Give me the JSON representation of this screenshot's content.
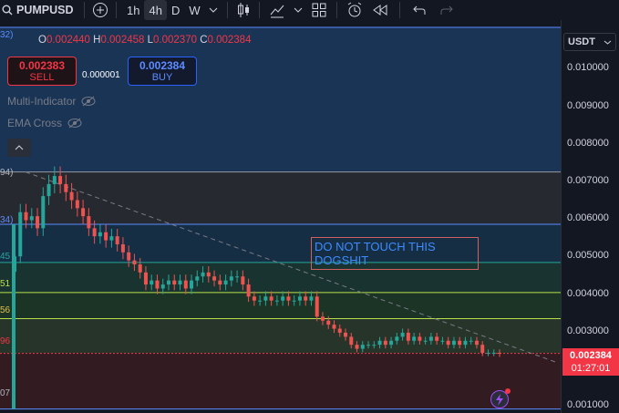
{
  "toolbar": {
    "symbol": "PUMPUSD",
    "timeframes": [
      "1h",
      "4h",
      "D",
      "W"
    ],
    "active_timeframe": "4h"
  },
  "legend": {
    "open_label": "O",
    "open": "0.002440",
    "high_label": "H",
    "high": "0.002458",
    "low_label": "L",
    "low": "0.002370",
    "close_label": "C",
    "close": "0.002384"
  },
  "trade": {
    "sell_price": "0.002383",
    "sell_label": "SELL",
    "spread": "0.000001",
    "buy_price": "0.002384",
    "buy_label": "BUY"
  },
  "indicators": [
    {
      "label": "Multi-Indicator"
    },
    {
      "label": "EMA Cross"
    }
  ],
  "annotation": {
    "line1": "DO NOT TOUCH THIS",
    "line2": "DOGSHIT"
  },
  "price_axis": {
    "currency": "USDT",
    "ticks": [
      "0.010000",
      "0.009000",
      "0.008000",
      "0.007000",
      "0.006000",
      "0.005000",
      "0.004000",
      "0.003000",
      "0.001000"
    ],
    "current_price": "0.002384",
    "countdown": "01:27:01"
  },
  "left_cut_labels": [
    "32)",
    "94)",
    "34)",
    "45",
    "51",
    "56",
    "96",
    "07"
  ],
  "colors": {
    "up": "#26a69a",
    "down": "#ef5350",
    "background": "#131722",
    "accent": "#2962ff"
  },
  "chart_data": {
    "type": "candlestick",
    "y_range": [
      0.00097,
      0.0105
    ],
    "horizontal_levels": [
      0.0105,
      0.0069,
      0.0056,
      0.00465,
      0.0039,
      0.00325,
      0.002384,
      0.001
    ],
    "closes": [
      0.0048,
      0.0059,
      0.0057,
      0.0058,
      0.0055,
      0.0063,
      0.0066,
      0.0068,
      0.0066,
      0.0064,
      0.0062,
      0.006,
      0.0058,
      0.0055,
      0.0053,
      0.0054,
      0.0052,
      0.0053,
      0.0051,
      0.0049,
      0.0047,
      0.0046,
      0.0044,
      0.0041,
      0.0042,
      0.004,
      0.0041,
      0.0042,
      0.0041,
      0.0042,
      0.004,
      0.0042,
      0.0043,
      0.0044,
      0.0043,
      0.0042,
      0.0041,
      0.0042,
      0.0043,
      0.0043,
      0.0041,
      0.0038,
      0.0037,
      0.0037,
      0.0038,
      0.0037,
      0.0037,
      0.0038,
      0.0037,
      0.0037,
      0.0038,
      0.0037,
      0.0038,
      0.0033,
      0.0032,
      0.0031,
      0.003,
      0.0029,
      0.0028,
      0.0026,
      0.0025,
      0.0026,
      0.0026,
      0.0026,
      0.0027,
      0.0026,
      0.0027,
      0.0028,
      0.0029,
      0.0027,
      0.0028,
      0.0027,
      0.0027,
      0.0028,
      0.0027,
      0.0027,
      0.0026,
      0.0027,
      0.0026,
      0.0027,
      0.0027,
      0.0026,
      0.0024,
      0.0024,
      0.0024,
      0.00238
    ]
  }
}
